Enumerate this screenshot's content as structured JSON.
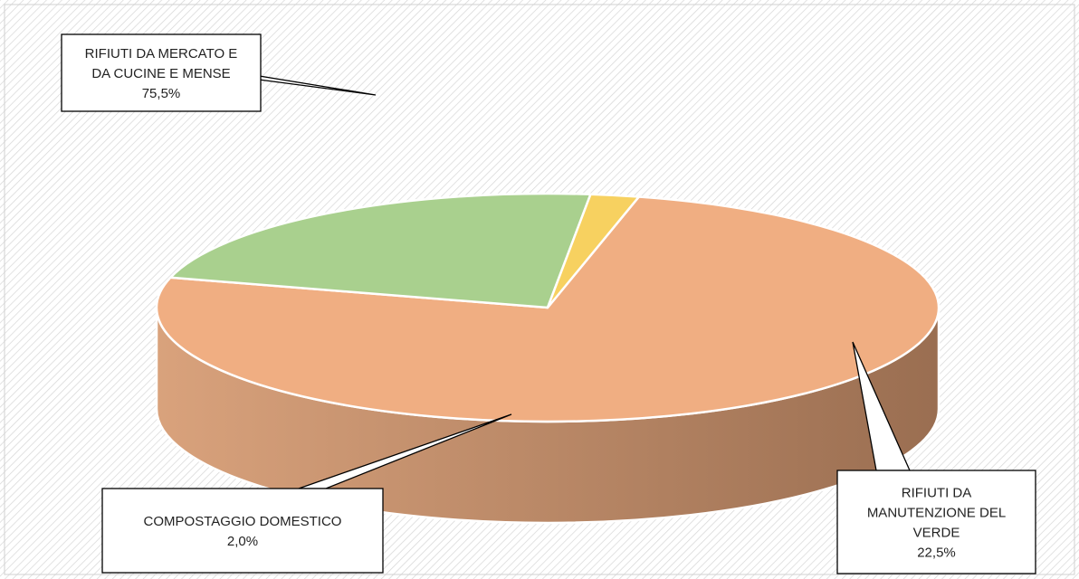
{
  "chart_data": {
    "type": "pie",
    "title": "",
    "slices": [
      {
        "key": "mercato",
        "label_lines": [
          "RIFIUTI DA MERCATO E",
          "DA CUCINE E MENSE"
        ],
        "value": 75.5,
        "value_label": "75,5%",
        "color": "#f0ae82",
        "side_color_light": "#d9a27c",
        "side_color_dark": "#9a6e51"
      },
      {
        "key": "verde",
        "label_lines": [
          "RIFIUTI DA",
          "MANUTENZIONE DEL",
          "VERDE"
        ],
        "value": 22.5,
        "value_label": "22,5%",
        "color": "#a9d08e",
        "side_color_light": "#5f7a4f",
        "side_color_dark": "#3f5436"
      },
      {
        "key": "compostaggio",
        "label_lines": [
          "COMPOSTAGGIO DOMESTICO"
        ],
        "value": 2.0,
        "value_label": "2,0%",
        "color": "#f7d160",
        "side_color_light": "#a88c3c",
        "side_color_dark": "#8a7232"
      }
    ],
    "legend": "none",
    "labels": "callouts"
  }
}
